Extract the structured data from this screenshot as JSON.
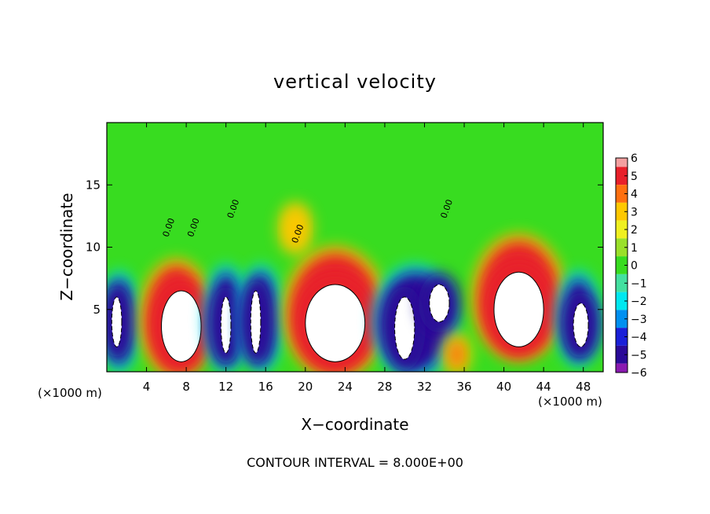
{
  "chart_data": {
    "type": "heatmap",
    "title": "vertical velocity",
    "xlabel": "X−coordinate",
    "ylabel": "Z−coordinate",
    "x_unit_left": "(×1000 m)",
    "x_unit_right": "(×1000 m)",
    "xlim": [
      0,
      50
    ],
    "ylim": [
      0,
      20
    ],
    "x_ticks": [
      4,
      8,
      12,
      16,
      20,
      24,
      28,
      32,
      36,
      40,
      44,
      48
    ],
    "y_ticks": [
      5,
      10,
      15
    ],
    "footer": "CONTOUR INTERVAL = 8.000E+00",
    "contour_label": "0.00",
    "colorbar": {
      "ticks": [
        6,
        5,
        4,
        3,
        2,
        1,
        0,
        -1,
        -2,
        -3,
        -4,
        -5,
        -6
      ],
      "tick_labels": [
        "6",
        "5",
        "4",
        "3",
        "2",
        "1",
        "0",
        "−1",
        "−2",
        "−3",
        "−4",
        "−5",
        "−6"
      ],
      "range": [
        -6,
        6
      ],
      "colors": [
        "#f4a0a0",
        "#e8202a",
        "#ff7010",
        "#ffc800",
        "#f0f020",
        "#9ae02a",
        "#38dc20",
        "#44e0a0",
        "#00e8f0",
        "#0090f0",
        "#1a20d8",
        "#2a0a98",
        "#8a1ab0"
      ]
    },
    "cells": [
      {
        "x": [
          0,
          2.5
        ],
        "z": [
          0.5,
          7.5
        ],
        "v": -5
      },
      {
        "x": [
          0.5,
          1.5
        ],
        "z": [
          2.0,
          6.0
        ],
        "v": -8
      },
      {
        "x": [
          4.0,
          10.0
        ],
        "z": [
          0.0,
          8.5
        ],
        "v": 5
      },
      {
        "x": [
          5.5,
          9.5
        ],
        "z": [
          0.8,
          6.5
        ],
        "v": 8
      },
      {
        "x": [
          10.5,
          13.5
        ],
        "z": [
          0.5,
          8.0
        ],
        "v": -5
      },
      {
        "x": [
          11.5,
          12.5
        ],
        "z": [
          1.5,
          6.0
        ],
        "v": -8
      },
      {
        "x": [
          14.0,
          17.0
        ],
        "z": [
          0.5,
          8.0
        ],
        "v": -5
      },
      {
        "x": [
          14.5,
          15.5
        ],
        "z": [
          1.5,
          6.5
        ],
        "v": -8
      },
      {
        "x": [
          18.5,
          27.5
        ],
        "z": [
          0.0,
          9.5
        ],
        "v": 5
      },
      {
        "x": [
          20.0,
          26.0
        ],
        "z": [
          0.8,
          7.0
        ],
        "v": 8
      },
      {
        "x": [
          27.5,
          34.5
        ],
        "z": [
          0.0,
          8.0
        ],
        "v": -5
      },
      {
        "x": [
          29.0,
          31.0
        ],
        "z": [
          1.0,
          6.0
        ],
        "v": -8
      },
      {
        "x": [
          32.5,
          34.5
        ],
        "z": [
          4.0,
          7.0
        ],
        "v": -8
      },
      {
        "x": [
          34.5,
          36.0
        ],
        "z": [
          0.3,
          2.5
        ],
        "v": 4
      },
      {
        "x": [
          37.5,
          45.5
        ],
        "z": [
          1.5,
          10.5
        ],
        "v": 5
      },
      {
        "x": [
          39.0,
          44.0
        ],
        "z": [
          2.0,
          8.0
        ],
        "v": 8
      },
      {
        "x": [
          46.0,
          49.0
        ],
        "z": [
          1.0,
          7.5
        ],
        "v": -5
      },
      {
        "x": [
          47.0,
          48.5
        ],
        "z": [
          2.0,
          5.5
        ],
        "v": -8
      },
      {
        "x": [
          18.0,
          20.0
        ],
        "z": [
          10.0,
          13.0
        ],
        "v": 3
      }
    ]
  }
}
